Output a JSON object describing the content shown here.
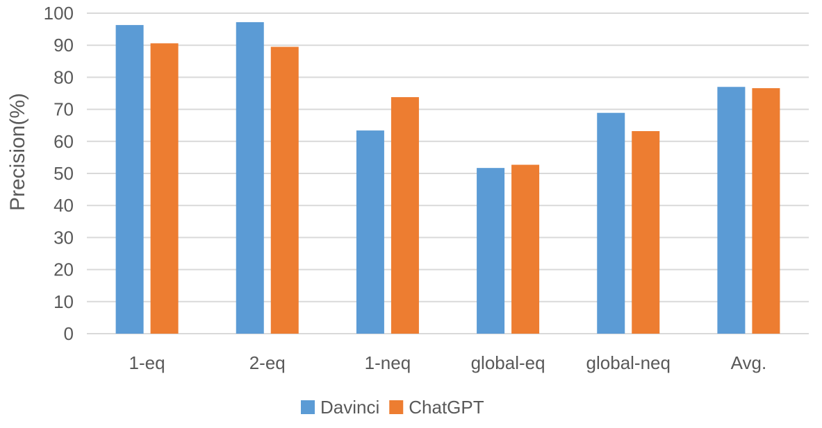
{
  "chart_data": {
    "type": "bar",
    "title": "",
    "xlabel": "",
    "ylabel": "Precision(%)",
    "ylim": [
      0,
      100
    ],
    "yticks": [
      0,
      10,
      20,
      30,
      40,
      50,
      60,
      70,
      80,
      90,
      100
    ],
    "grid": true,
    "legend_position": "bottom",
    "categories": [
      "1-eq",
      "2-eq",
      "1-neq",
      "global-eq",
      "global-neq",
      "Avg."
    ],
    "series": [
      {
        "name": "Davinci",
        "color": "#5B9BD5",
        "values": [
          96.3,
          97.2,
          63.4,
          51.7,
          68.9,
          77.0
        ]
      },
      {
        "name": "ChatGPT",
        "color": "#ED7D31",
        "values": [
          90.6,
          89.5,
          73.8,
          52.7,
          63.2,
          76.6
        ]
      }
    ],
    "gridline_color": "#d9d9d9",
    "text_color": "#595959"
  }
}
